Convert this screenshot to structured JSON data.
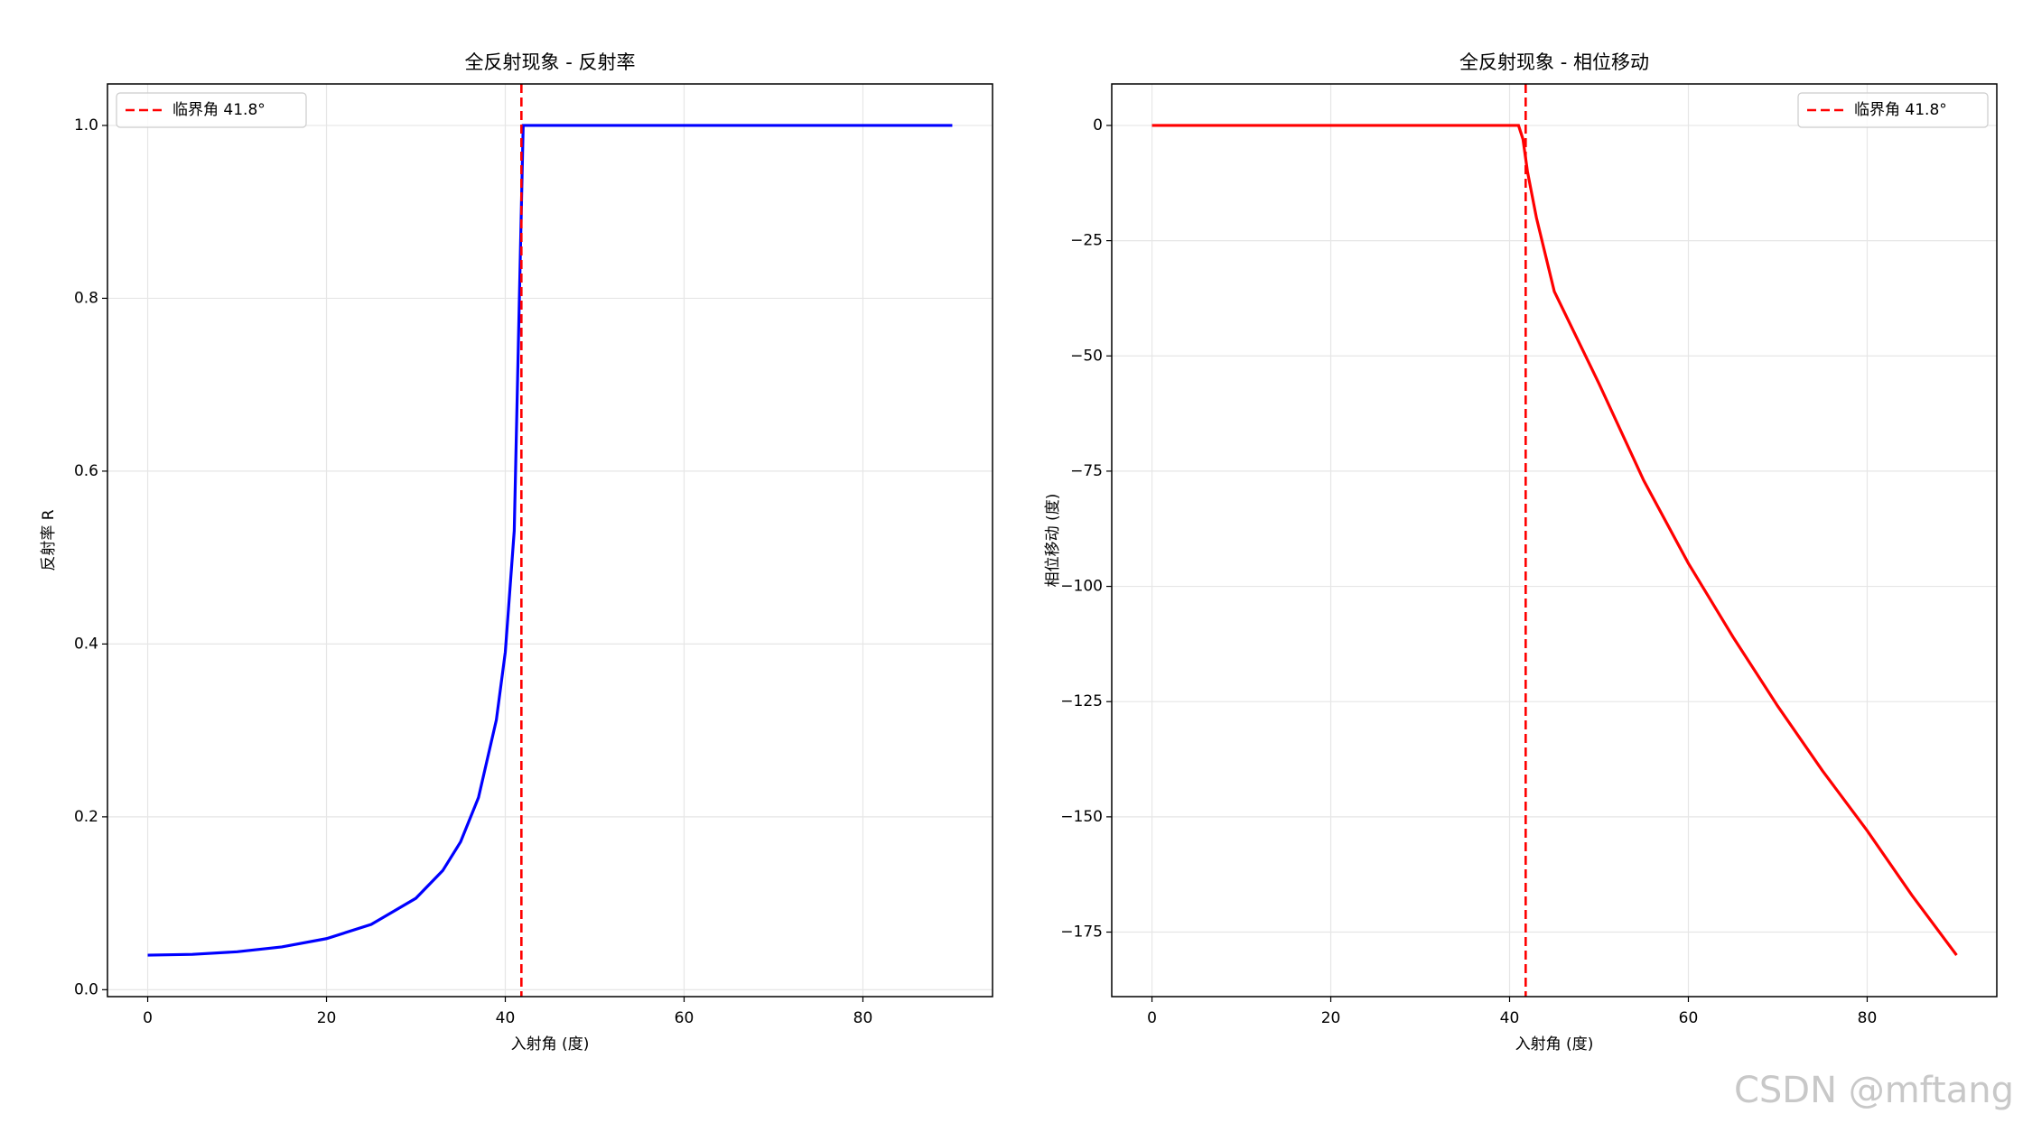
{
  "chart_data": [
    {
      "type": "line",
      "title": "全反射现象 - 反射率",
      "xlabel": "入射角 (度)",
      "ylabel": "反射率 R",
      "x": [
        0,
        5,
        10,
        15,
        20,
        25,
        30,
        33,
        35,
        37,
        39,
        40,
        41,
        42,
        50,
        60,
        70,
        80,
        90
      ],
      "series": [
        {
          "color": "#0000ff",
          "values": [
            0.04,
            0.0409,
            0.0439,
            0.0495,
            0.0591,
            0.0755,
            0.1058,
            0.1378,
            0.1711,
            0.2223,
            0.3122,
            0.3907,
            0.5311,
            1.0,
            1.0,
            1.0,
            1.0,
            1.0,
            1.0
          ]
        }
      ],
      "vline": {
        "x": 41.8,
        "name": "临界角 41.8°",
        "color": "#ff0000"
      },
      "xlim": [
        -4.5,
        94.5
      ],
      "ylim": [
        -0.008,
        1.048
      ],
      "xticks": [
        0,
        20,
        40,
        60,
        80
      ],
      "yticks": [
        {
          "value": 0,
          "label": "0.0"
        },
        0.2,
        0.4,
        0.6,
        0.8,
        {
          "value": 1,
          "label": "1.0"
        }
      ],
      "grid": true,
      "legend": "upper left"
    },
    {
      "type": "line",
      "title": "全反射现象 - 相位移动",
      "xlabel": "入射角 (度)",
      "ylabel": "相位移动 (度)",
      "x": [
        0,
        41,
        41.5,
        42,
        43,
        45,
        50,
        55,
        60,
        65,
        70,
        75,
        80,
        85,
        90
      ],
      "series": [
        {
          "color": "#ff0000",
          "values": [
            0,
            0,
            -3,
            -10,
            -20,
            -36,
            -56,
            -77,
            -95,
            -111,
            -126,
            -140,
            -153,
            -167,
            -180
          ]
        }
      ],
      "vline": {
        "x": 41.8,
        "name": "临界角 41.8°",
        "color": "#ff0000"
      },
      "xlim": [
        -4.5,
        94.5
      ],
      "ylim": [
        -189,
        9
      ],
      "xticks": [
        0,
        20,
        40,
        60,
        80
      ],
      "yticks": [
        0,
        {
          "value": -25,
          "label": "−25"
        },
        {
          "value": -50,
          "label": "−50"
        },
        {
          "value": -75,
          "label": "−75"
        },
        {
          "value": -100,
          "label": "−100"
        },
        {
          "value": -125,
          "label": "−125"
        },
        {
          "value": -150,
          "label": "−150"
        },
        {
          "value": -175,
          "label": "−175"
        }
      ],
      "grid": true,
      "legend": "upper right"
    }
  ],
  "watermark": "CSDN @mftang"
}
